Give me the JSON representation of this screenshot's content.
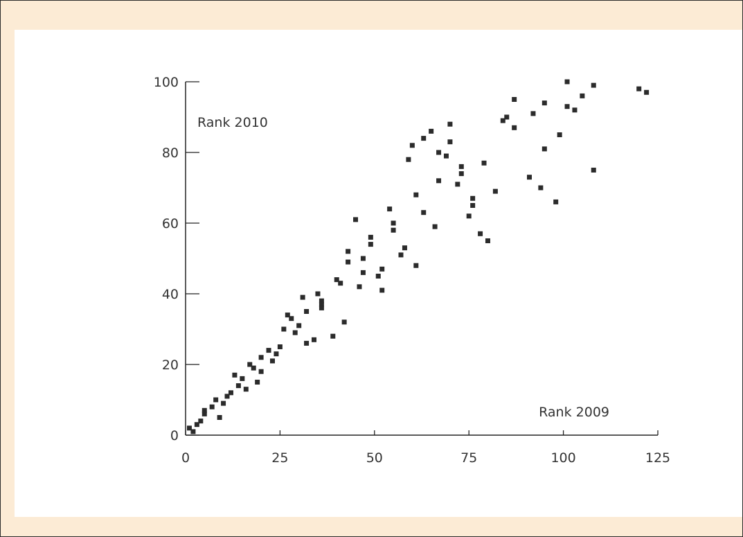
{
  "chart_data": {
    "type": "scatter",
    "title": "",
    "xlabel": "Rank 2009",
    "ylabel": "Rank 2010",
    "xlim": [
      0,
      125
    ],
    "ylim": [
      0,
      100
    ],
    "x_ticks": [
      0,
      25,
      50,
      75,
      100,
      125
    ],
    "y_ticks": [
      0,
      20,
      40,
      60,
      80,
      100
    ],
    "grid": false,
    "marker": "square",
    "marker_color": "#2b2b2b",
    "series": [
      {
        "points": [
          [
            1,
            2
          ],
          [
            2,
            1
          ],
          [
            3,
            3
          ],
          [
            4,
            4
          ],
          [
            5,
            6
          ],
          [
            5,
            7
          ],
          [
            7,
            8
          ],
          [
            8,
            10
          ],
          [
            9,
            5
          ],
          [
            10,
            9
          ],
          [
            11,
            11
          ],
          [
            12,
            12
          ],
          [
            13,
            17
          ],
          [
            14,
            14
          ],
          [
            15,
            16
          ],
          [
            16,
            13
          ],
          [
            17,
            20
          ],
          [
            18,
            19
          ],
          [
            19,
            15
          ],
          [
            20,
            18
          ],
          [
            20,
            22
          ],
          [
            22,
            24
          ],
          [
            23,
            21
          ],
          [
            24,
            23
          ],
          [
            25,
            25
          ],
          [
            26,
            30
          ],
          [
            27,
            34
          ],
          [
            28,
            33
          ],
          [
            29,
            29
          ],
          [
            30,
            31
          ],
          [
            31,
            39
          ],
          [
            32,
            26
          ],
          [
            32,
            35
          ],
          [
            34,
            27
          ],
          [
            35,
            40
          ],
          [
            36,
            38
          ],
          [
            36,
            37
          ],
          [
            36,
            36
          ],
          [
            39,
            28
          ],
          [
            40,
            44
          ],
          [
            41,
            43
          ],
          [
            42,
            32
          ],
          [
            43,
            49
          ],
          [
            43,
            52
          ],
          [
            45,
            61
          ],
          [
            46,
            42
          ],
          [
            47,
            46
          ],
          [
            47,
            50
          ],
          [
            49,
            56
          ],
          [
            49,
            54
          ],
          [
            51,
            45
          ],
          [
            52,
            41
          ],
          [
            52,
            47
          ],
          [
            54,
            64
          ],
          [
            55,
            60
          ],
          [
            55,
            58
          ],
          [
            57,
            51
          ],
          [
            58,
            53
          ],
          [
            59,
            78
          ],
          [
            60,
            82
          ],
          [
            61,
            48
          ],
          [
            61,
            68
          ],
          [
            63,
            63
          ],
          [
            63,
            84
          ],
          [
            65,
            86
          ],
          [
            66,
            59
          ],
          [
            67,
            72
          ],
          [
            67,
            80
          ],
          [
            69,
            79
          ],
          [
            70,
            83
          ],
          [
            70,
            88
          ],
          [
            72,
            71
          ],
          [
            73,
            74
          ],
          [
            73,
            76
          ],
          [
            75,
            62
          ],
          [
            76,
            65
          ],
          [
            76,
            67
          ],
          [
            78,
            57
          ],
          [
            79,
            77
          ],
          [
            80,
            55
          ],
          [
            82,
            69
          ],
          [
            84,
            89
          ],
          [
            85,
            90
          ],
          [
            87,
            87
          ],
          [
            87,
            95
          ],
          [
            91,
            73
          ],
          [
            92,
            91
          ],
          [
            94,
            70
          ],
          [
            95,
            81
          ],
          [
            95,
            94
          ],
          [
            98,
            66
          ],
          [
            99,
            85
          ],
          [
            101,
            93
          ],
          [
            101,
            100
          ],
          [
            103,
            92
          ],
          [
            105,
            96
          ],
          [
            108,
            99
          ],
          [
            108,
            75
          ],
          [
            120,
            98
          ],
          [
            122,
            97
          ]
        ]
      }
    ]
  }
}
